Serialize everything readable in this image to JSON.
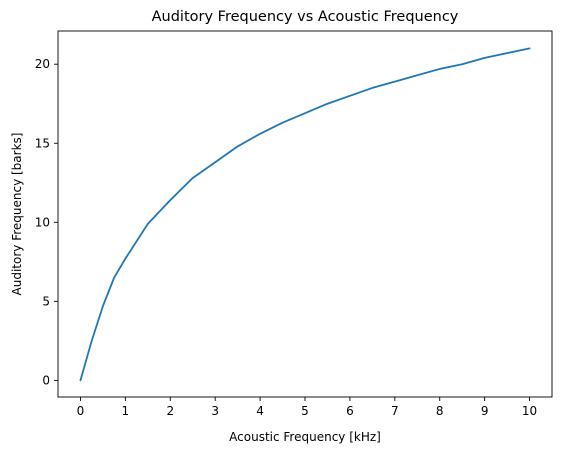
{
  "chart_data": {
    "type": "line",
    "title": "Auditory Frequency vs Acoustic Frequency",
    "xlabel": "Acoustic Frequency [kHz]",
    "ylabel": "Auditory Frequency [barks]",
    "xlim": [
      -0.5,
      10.5
    ],
    "ylim": [
      -1.05,
      22.1
    ],
    "xticks": [
      0,
      1,
      2,
      3,
      4,
      5,
      6,
      7,
      8,
      9,
      10
    ],
    "yticks": [
      0,
      5,
      10,
      15,
      20
    ],
    "grid": false,
    "legend": "none",
    "series": [
      {
        "color": "#1f77b4",
        "x": [
          0,
          0.25,
          0.5,
          0.75,
          1,
          1.5,
          2,
          2.5,
          3,
          3.5,
          4,
          4.5,
          5,
          5.5,
          6,
          6.5,
          7,
          7.5,
          8,
          8.5,
          9,
          9.5,
          10
        ],
        "y": [
          0,
          2.5,
          4.7,
          6.5,
          7.7,
          9.9,
          11.4,
          12.8,
          13.8,
          14.8,
          15.6,
          16.3,
          16.9,
          17.5,
          18.0,
          18.5,
          18.9,
          19.3,
          19.7,
          20.0,
          20.4,
          20.7,
          21.0
        ]
      }
    ]
  }
}
